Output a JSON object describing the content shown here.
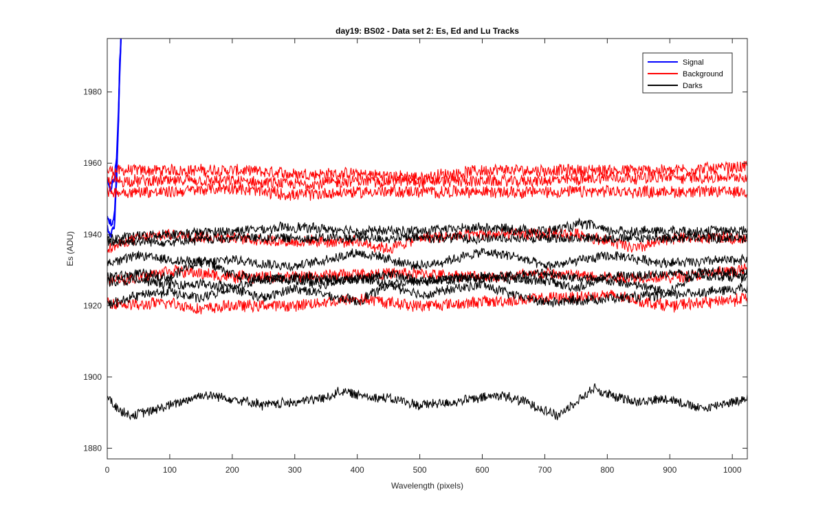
{
  "chart_data": {
    "type": "line",
    "title": "day19: BS02 - Data set 2: Es, Ed and Lu Tracks",
    "xlabel": "Wavelength (pixels)",
    "ylabel": "Es (ADU)",
    "xlim": [
      0,
      1024
    ],
    "ylim": [
      1877,
      1995
    ],
    "xticks": [
      0,
      100,
      200,
      300,
      400,
      500,
      600,
      700,
      800,
      900,
      1000
    ],
    "yticks": [
      1880,
      1900,
      1920,
      1940,
      1960,
      1980
    ],
    "grid": false,
    "legend": {
      "placement": "top-right",
      "entries": [
        {
          "label": "Signal",
          "color": "#0000ff"
        },
        {
          "label": "Background",
          "color": "#ff0000"
        },
        {
          "label": "Darks",
          "color": "#000000"
        }
      ]
    },
    "series": [
      {
        "group": "Signal",
        "color": "#0000ff",
        "x": [
          0,
          4,
          8,
          12,
          15,
          18,
          20,
          22
        ],
        "y": [
          1955,
          1952,
          1954,
          1956,
          1962,
          1975,
          1988,
          1995
        ]
      },
      {
        "group": "Signal",
        "color": "#0000ff",
        "x": [
          0,
          4,
          8,
          12,
          15,
          18,
          20,
          22
        ],
        "y": [
          1946,
          1943,
          1944,
          1946,
          1958,
          1973,
          1987,
          1995
        ]
      },
      {
        "group": "Signal",
        "color": "#0000ff",
        "x": [
          0,
          4,
          8,
          12,
          15,
          18,
          20,
          22
        ],
        "y": [
          1942,
          1939,
          1941,
          1943,
          1956,
          1972,
          1986,
          1995
        ]
      },
      {
        "group": "Background",
        "color": "#ff0000",
        "x": [
          0,
          100,
          200,
          300,
          400,
          500,
          600,
          700,
          800,
          900,
          1024
        ],
        "y": [
          1958,
          1958,
          1958,
          1957,
          1957,
          1956,
          1958,
          1958,
          1958,
          1958,
          1959
        ]
      },
      {
        "group": "Background",
        "color": "#ff0000",
        "x": [
          0,
          100,
          200,
          300,
          400,
          500,
          600,
          700,
          800,
          900,
          1024
        ],
        "y": [
          1955,
          1955,
          1955,
          1954,
          1955,
          1955,
          1955,
          1955,
          1956,
          1956,
          1956
        ]
      },
      {
        "group": "Background",
        "color": "#ff0000",
        "x": [
          0,
          100,
          200,
          300,
          400,
          500,
          600,
          700,
          800,
          900,
          1024
        ],
        "y": [
          1952,
          1952,
          1953,
          1951,
          1952,
          1952,
          1952,
          1952,
          1952,
          1952,
          1952
        ]
      },
      {
        "group": "Background",
        "color": "#ff0000",
        "x": [
          0,
          50,
          100,
          200,
          300,
          400,
          450,
          500,
          600,
          700,
          760,
          850,
          900,
          1024
        ],
        "y": [
          1936,
          1939,
          1940,
          1939,
          1938,
          1938,
          1936,
          1939,
          1940,
          1940,
          1940,
          1936,
          1939,
          1939
        ]
      },
      {
        "group": "Background",
        "color": "#ff0000",
        "x": [
          0,
          50,
          100,
          200,
          300,
          400,
          500,
          600,
          700,
          800,
          900,
          1024
        ],
        "y": [
          1927,
          1928,
          1930,
          1928,
          1928,
          1929,
          1929,
          1928,
          1929,
          1928,
          1928,
          1930
        ]
      },
      {
        "group": "Background",
        "color": "#ff0000",
        "x": [
          0,
          50,
          100,
          150,
          200,
          300,
          400,
          500,
          600,
          700,
          800,
          900,
          1024
        ],
        "y": [
          1921,
          1920,
          1921,
          1919,
          1920,
          1920,
          1922,
          1920,
          1921,
          1922,
          1923,
          1920,
          1922
        ]
      },
      {
        "group": "Darks",
        "color": "#000000",
        "x": [
          0,
          100,
          200,
          300,
          400,
          500,
          600,
          700,
          770,
          800,
          900,
          1024
        ],
        "y": [
          1939,
          1940,
          1941,
          1942,
          1941,
          1941,
          1942,
          1941,
          1943,
          1941,
          1941,
          1941
        ]
      },
      {
        "group": "Darks",
        "color": "#000000",
        "x": [
          0,
          100,
          200,
          300,
          400,
          500,
          600,
          700,
          800,
          900,
          1024
        ],
        "y": [
          1938,
          1938,
          1939,
          1939,
          1939,
          1939,
          1939,
          1939,
          1939,
          1939,
          1939
        ]
      },
      {
        "group": "Darks",
        "color": "#000000",
        "x": [
          0,
          50,
          100,
          150,
          200,
          300,
          350,
          400,
          500,
          600,
          650,
          700,
          800,
          900,
          1024
        ],
        "y": [
          1932,
          1934,
          1933,
          1932,
          1933,
          1931,
          1933,
          1935,
          1931,
          1935,
          1934,
          1931,
          1934,
          1932,
          1933
        ]
      },
      {
        "group": "Darks",
        "color": "#000000",
        "x": [
          0,
          50,
          100,
          150,
          200,
          250,
          300,
          400,
          450,
          500,
          600,
          700,
          800,
          900,
          950,
          1024
        ],
        "y": [
          1928,
          1929,
          1928,
          1933,
          1929,
          1927,
          1928,
          1927,
          1929,
          1927,
          1928,
          1929,
          1927,
          1924,
          1930,
          1929
        ]
      },
      {
        "group": "Darks",
        "color": "#000000",
        "x": [
          0,
          50,
          100,
          150,
          200,
          250,
          300,
          350,
          400,
          450,
          500,
          600,
          700,
          750,
          800,
          900,
          1024
        ],
        "y": [
          1927,
          1927,
          1926,
          1926,
          1925,
          1928,
          1927,
          1926,
          1928,
          1926,
          1927,
          1928,
          1927,
          1925,
          1928,
          1929,
          1928
        ]
      },
      {
        "group": "Darks",
        "color": "#000000",
        "x": [
          0,
          50,
          100,
          150,
          200,
          250,
          300,
          350,
          400,
          450,
          500,
          600,
          650,
          700,
          800,
          900,
          1024
        ],
        "y": [
          1920,
          1923,
          1924,
          1922,
          1925,
          1922,
          1925,
          1923,
          1921,
          1926,
          1923,
          1926,
          1923,
          1921,
          1922,
          1923,
          1925
        ]
      },
      {
        "group": "Darks",
        "color": "#000000",
        "x": [
          0,
          20,
          40,
          100,
          150,
          200,
          250,
          300,
          350,
          370,
          400,
          450,
          500,
          550,
          600,
          630,
          700,
          720,
          750,
          780,
          800,
          850,
          900,
          950,
          1024
        ],
        "y": [
          1894,
          1891,
          1889,
          1892,
          1895,
          1894,
          1892,
          1893,
          1894,
          1896,
          1895,
          1894,
          1892,
          1893,
          1894,
          1895,
          1891,
          1889,
          1893,
          1897,
          1895,
          1893,
          1894,
          1891,
          1894
        ]
      }
    ]
  }
}
